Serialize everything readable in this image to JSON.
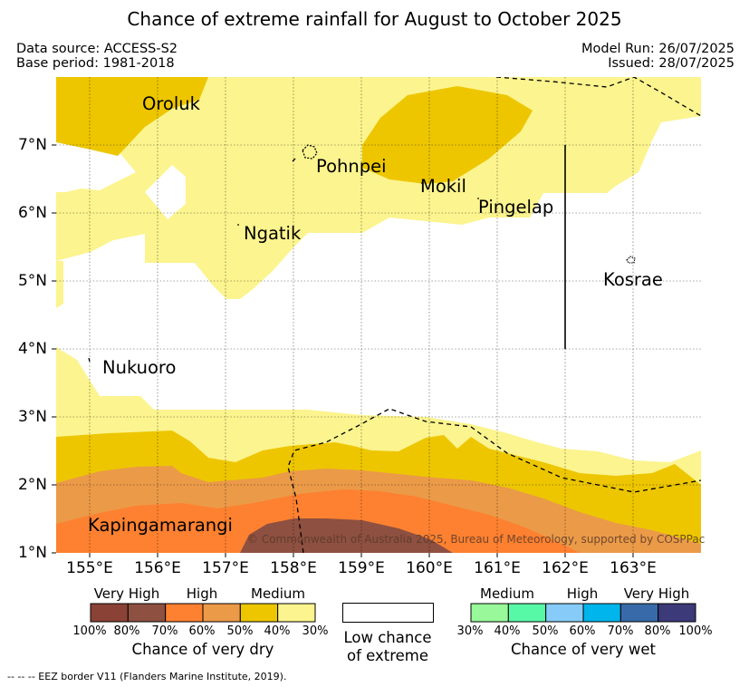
{
  "title": "Chance of extreme rainfall for August to October 2025",
  "data_source": "Data source: ACCESS-S2",
  "base_period": "Base period: 1981-2018",
  "model_run": "Model Run: 26/07/2025",
  "issued": "Issued: 28/07/2025",
  "map": {
    "longitude_labels": [
      "155°E",
      "156°E",
      "157°E",
      "158°E",
      "159°E",
      "160°E",
      "161°E",
      "162°E",
      "163°E"
    ],
    "latitude_labels": [
      "7°N",
      "6°N",
      "5°N",
      "4°N",
      "3°N",
      "2°N",
      "1°N"
    ],
    "places": [
      "Oroluk",
      "Pohnpei",
      "Mokil",
      "Pingelap",
      "Ngatik",
      "Kosrae",
      "Nukuoro",
      "Kapingamarangi"
    ],
    "copyright": "© Commonwealth of Australia 2025, Bureau of Meteorology, supported by COSPPac"
  },
  "legend": {
    "dry": {
      "categories": [
        "Very High",
        "High",
        "Medium"
      ],
      "ticks": [
        "100%",
        "80%",
        "70%",
        "60%",
        "50%",
        "40%",
        "30%"
      ],
      "colors": [
        "#8b4236",
        "#8e5040",
        "#fd8130",
        "#eb9a48",
        "#edc600",
        "#fcf48e"
      ],
      "title": "Chance of very dry"
    },
    "low": {
      "line1": "Low chance",
      "line2": "of extreme",
      "color": "#ffffff"
    },
    "wet": {
      "categories": [
        "Medium",
        "High",
        "Very High"
      ],
      "ticks": [
        "30%",
        "40%",
        "50%",
        "60%",
        "70%",
        "80%",
        "100%"
      ],
      "colors": [
        "#99f99a",
        "#57f9a6",
        "#87ccf8",
        "#00b5ec",
        "#386aa9",
        "#3d3a7a"
      ],
      "title": "Chance of very wet"
    }
  },
  "footer": "--  --  -- EEZ border V11 (Flanders Marine Institute, 2019)."
}
